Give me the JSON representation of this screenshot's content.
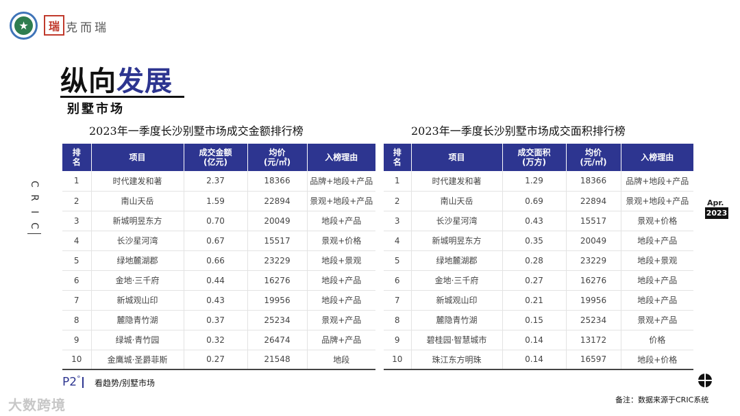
{
  "brand": {
    "name": "克而瑞",
    "seal": "瑞"
  },
  "title": {
    "prefix": "纵向",
    "accent": "发展",
    "subtitle": "别墅市场"
  },
  "side_label": [
    "C",
    "R",
    "I",
    "C"
  ],
  "date_badge": {
    "month": "Apr.",
    "year": "2023"
  },
  "left_table": {
    "title": "2023年一季度长沙别墅市场成交金额排行榜",
    "headers": [
      [
        "排",
        "名"
      ],
      [
        "项目"
      ],
      [
        "成交金额",
        "(亿元)"
      ],
      [
        "均价",
        "(元/㎡)"
      ],
      [
        "入榜理由"
      ]
    ],
    "rows": [
      [
        "1",
        "时代建发和著",
        "2.37",
        "18366",
        "品牌+地段+产品"
      ],
      [
        "2",
        "南山天岳",
        "1.59",
        "22894",
        "景观+地段+产品"
      ],
      [
        "3",
        "新城明昱东方",
        "0.70",
        "20049",
        "地段+产品"
      ],
      [
        "4",
        "长沙星河湾",
        "0.67",
        "15517",
        "景观+价格"
      ],
      [
        "5",
        "绿地麓湖郡",
        "0.66",
        "23229",
        "地段+景观"
      ],
      [
        "6",
        "金地·三千府",
        "0.44",
        "16276",
        "地段+产品"
      ],
      [
        "7",
        "新城观山印",
        "0.43",
        "19956",
        "地段+产品"
      ],
      [
        "8",
        "麓隐青竹湖",
        "0.37",
        "25234",
        "景观+产品"
      ],
      [
        "9",
        "绿城·青竹园",
        "0.32",
        "26474",
        "品牌+产品"
      ],
      [
        "10",
        "金鹰城·圣爵菲斯",
        "0.27",
        "21548",
        "地段"
      ]
    ]
  },
  "right_table": {
    "title": "2023年一季度长沙别墅市场成交面积排行榜",
    "headers": [
      [
        "排",
        "名"
      ],
      [
        "项目"
      ],
      [
        "成交面积",
        "(万方)"
      ],
      [
        "均价",
        "(元/㎡)"
      ],
      [
        "入榜理由"
      ]
    ],
    "rows": [
      [
        "1",
        "时代建发和著",
        "1.29",
        "18366",
        "品牌+地段+产品"
      ],
      [
        "2",
        "南山天岳",
        "0.69",
        "22894",
        "景观+地段+产品"
      ],
      [
        "3",
        "长沙星河湾",
        "0.43",
        "15517",
        "景观+价格"
      ],
      [
        "4",
        "新城明昱东方",
        "0.35",
        "20049",
        "地段+产品"
      ],
      [
        "5",
        "绿地麓湖郡",
        "0.28",
        "23229",
        "地段+景观"
      ],
      [
        "6",
        "金地·三千府",
        "0.27",
        "16276",
        "地段+产品"
      ],
      [
        "7",
        "新城观山印",
        "0.21",
        "19956",
        "地段+产品"
      ],
      [
        "8",
        "麓隐青竹湖",
        "0.15",
        "25234",
        "景观+产品"
      ],
      [
        "9",
        "碧桂园·智慧城市",
        "0.14",
        "13172",
        "价格"
      ],
      [
        "10",
        "珠江东方明珠",
        "0.14",
        "16597",
        "地段+价格"
      ]
    ]
  },
  "footer": {
    "page": "P2",
    "page_mark": "°",
    "section": "看趋势/别墅市场",
    "note": "备注：数据来源于CRIC系统",
    "watermark": "大数跨境"
  },
  "colors": {
    "accent": "#2d3590",
    "header_bg": "#2d3590",
    "seal_red": "#c0392b",
    "logo_green": "#2e7d4f"
  }
}
